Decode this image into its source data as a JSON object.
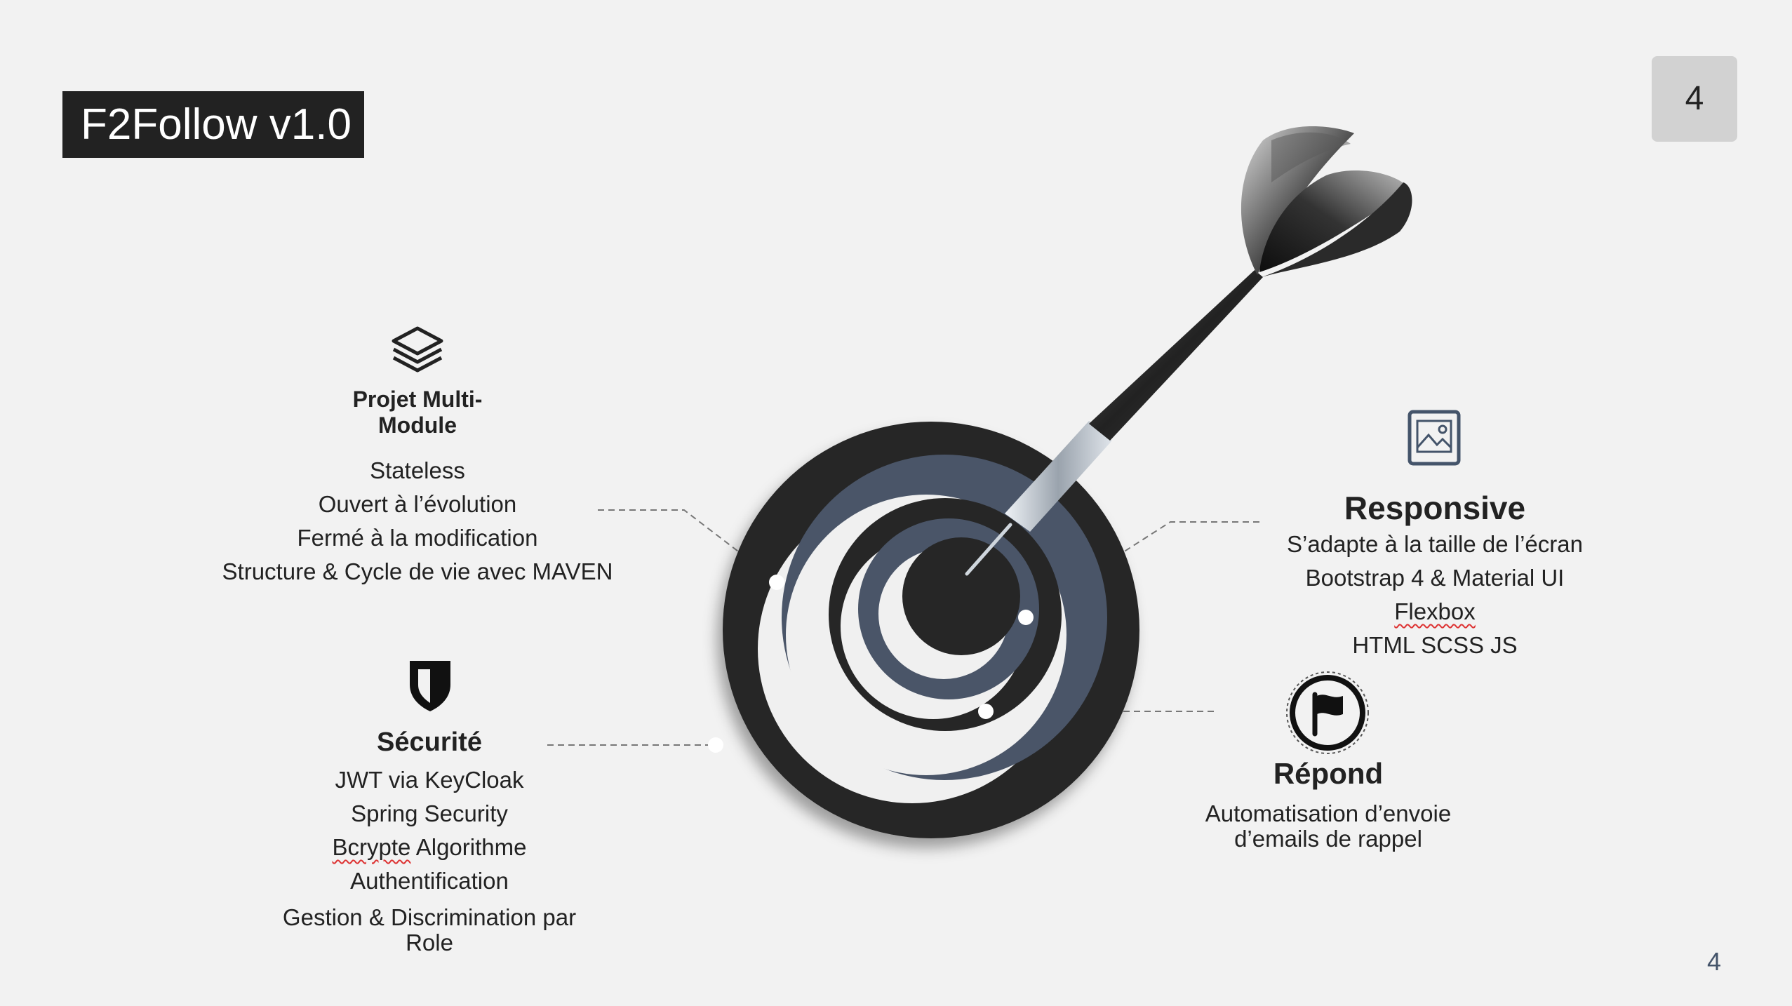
{
  "slide": {
    "title": "F2Follow v1.0",
    "badge_number": "4",
    "page_number": "4"
  },
  "projet": {
    "icon": "layers-icon",
    "heading_line1": "Projet Multi-",
    "heading_line2": "Module",
    "items": [
      "Stateless",
      "Ouvert à l’évolution",
      "Fermé à la modification",
      "Structure & Cycle de vie avec MAVEN"
    ]
  },
  "securite": {
    "icon": "shield-icon",
    "heading": "Sécurité",
    "items": [
      "JWT via KeyCloak",
      "Spring Security"
    ],
    "bcrypt_word": "Bcrypte",
    "bcrypt_rest": " Algorithme",
    "items2": [
      "Authentification"
    ],
    "last_line1": "Gestion & Discrimination par",
    "last_line2": "Role"
  },
  "responsive": {
    "icon": "image-icon",
    "heading": "Responsive",
    "items": [
      "S’adapte à la taille de l’écran",
      "Bootstrap 4 & Material UI"
    ],
    "flexbox": "Flexbox",
    "last": "HTML SCSS JS"
  },
  "repond": {
    "icon": "flag-icon",
    "heading": "Répond",
    "line1": "Automatisation d’envoie",
    "line2": "d’emails de rappel"
  },
  "colors": {
    "ring_dark": "#262626",
    "ring_slate": "#4a5568",
    "background": "#f2f2f2"
  }
}
